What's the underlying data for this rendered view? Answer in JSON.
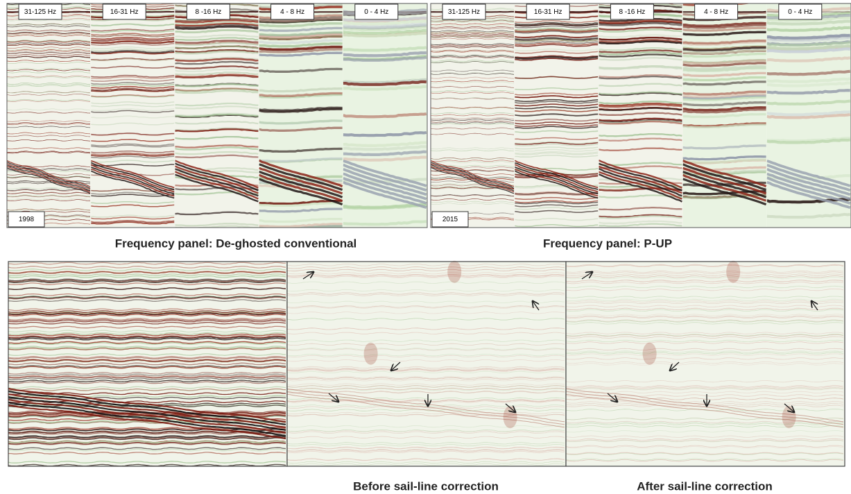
{
  "top_panels": [
    {
      "bands": [
        "31-125 Hz",
        "16-31 Hz",
        "8 -16 Hz",
        "4 - 8 Hz",
        "0 - 4 Hz"
      ],
      "year": "1998",
      "caption": "Frequency panel: De-ghosted conventional"
    },
    {
      "bands": [
        "31-125 Hz",
        "16-31 Hz",
        "8 -16 Hz",
        "4 - 8 Hz",
        "0 - 4 Hz"
      ],
      "year": "2015",
      "caption": "Frequency panel: P-UP"
    }
  ],
  "bottom_panels": {
    "captions": [
      "Before sail-line correction",
      "After sail-line correction"
    ]
  }
}
